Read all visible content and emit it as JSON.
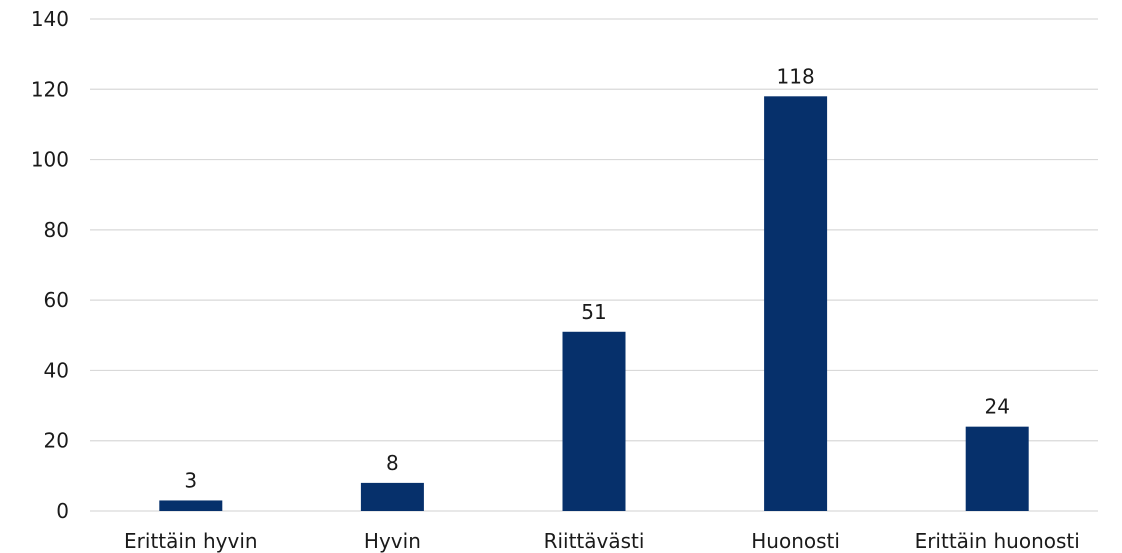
{
  "chart_data": {
    "type": "bar",
    "title": "",
    "xlabel": "",
    "ylabel": "",
    "categories": [
      "Erittäin hyvin",
      "Hyvin",
      "Riittävästi",
      "Huonosti",
      "Erittäin huonosti"
    ],
    "values": [
      3,
      8,
      51,
      118,
      24
    ],
    "data_labels": [
      "3",
      "8",
      "51",
      "118",
      "24"
    ],
    "ylim": [
      0,
      140
    ],
    "yticks": [
      0,
      20,
      40,
      60,
      80,
      100,
      120,
      140
    ],
    "grid": true,
    "legend": "none",
    "bar_color": "#06306b",
    "grid_color": "#d9d9d9"
  }
}
